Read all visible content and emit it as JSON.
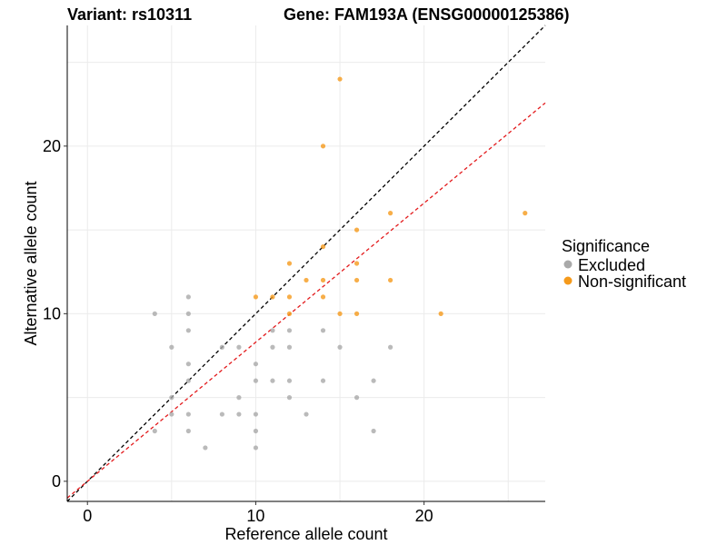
{
  "title_variant": "Variant: rs10311",
  "title_gene": "Gene: FAM193A (ENSG00000125386)",
  "chart_data": {
    "type": "scatter",
    "xlabel": "Reference allele count",
    "ylabel": "Alternative allele count",
    "xlim": [
      -1.2,
      27.2
    ],
    "ylim": [
      -1.2,
      27.2
    ],
    "x_ticks": [
      0,
      10,
      20
    ],
    "y_ticks": [
      0,
      10,
      20
    ],
    "grid": true,
    "legend": {
      "title": "Significance",
      "position": "right",
      "entries": [
        {
          "label": "Excluded",
          "color": "#a9a9a9"
        },
        {
          "label": "Non-significant",
          "color": "#f59a1b"
        }
      ]
    },
    "reference_lines": [
      {
        "slope": 1.0,
        "intercept": 0,
        "color": "#000000",
        "style": "dashed"
      },
      {
        "slope": 0.83,
        "intercept": 0,
        "color": "#e31a1c",
        "style": "dashed"
      }
    ],
    "series": [
      {
        "name": "Excluded",
        "color": "#a9a9a9",
        "points": [
          [
            4,
            10
          ],
          [
            4,
            3
          ],
          [
            5,
            8
          ],
          [
            5,
            5
          ],
          [
            5,
            4
          ],
          [
            6,
            11
          ],
          [
            6,
            10
          ],
          [
            6,
            9
          ],
          [
            6,
            7
          ],
          [
            6,
            6
          ],
          [
            6,
            4
          ],
          [
            6,
            3
          ],
          [
            7,
            2
          ],
          [
            8,
            8
          ],
          [
            8,
            4
          ],
          [
            9,
            8
          ],
          [
            9,
            5
          ],
          [
            9,
            4
          ],
          [
            10,
            7
          ],
          [
            10,
            6
          ],
          [
            10,
            4
          ],
          [
            10,
            3
          ],
          [
            10,
            2
          ],
          [
            11,
            9
          ],
          [
            11,
            8
          ],
          [
            11,
            6
          ],
          [
            12,
            9
          ],
          [
            12,
            8
          ],
          [
            12,
            6
          ],
          [
            12,
            5
          ],
          [
            13,
            4
          ],
          [
            14,
            9
          ],
          [
            14,
            6
          ],
          [
            15,
            8
          ],
          [
            16,
            5
          ],
          [
            17,
            6
          ],
          [
            17,
            3
          ],
          [
            18,
            8
          ]
        ]
      },
      {
        "name": "Non-significant",
        "color": "#f59a1b",
        "points": [
          [
            10,
            11
          ],
          [
            11,
            11
          ],
          [
            12,
            13
          ],
          [
            12,
            11
          ],
          [
            12,
            10
          ],
          [
            13,
            12
          ],
          [
            14,
            20
          ],
          [
            14,
            14
          ],
          [
            14,
            12
          ],
          [
            14,
            11
          ],
          [
            15,
            24
          ],
          [
            15,
            10
          ],
          [
            16,
            15
          ],
          [
            16,
            13
          ],
          [
            16,
            12
          ],
          [
            16,
            10
          ],
          [
            18,
            16
          ],
          [
            18,
            12
          ],
          [
            21,
            10
          ],
          [
            26,
            16
          ]
        ]
      }
    ]
  }
}
